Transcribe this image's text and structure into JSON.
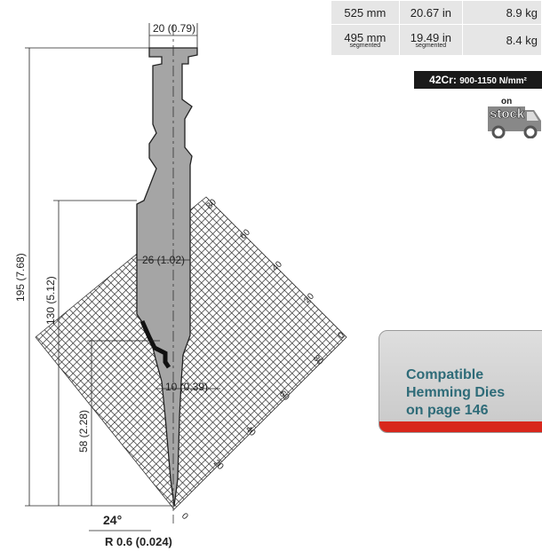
{
  "specs": [
    {
      "length_mm": "525 mm",
      "length_in": "20.67 in",
      "weight": "8.9 kg",
      "note": ""
    },
    {
      "length_mm": "495 mm",
      "length_in": "19.49 in",
      "weight": "8.4 kg",
      "note": "segmented"
    }
  ],
  "material": {
    "grade": "42Cr:",
    "strength": "900-1150 N/mm²"
  },
  "stock": {
    "on": "on",
    "stock": "stock"
  },
  "compatibility": {
    "line1": "Compatible",
    "line2": "Hemming Dies",
    "line3": "on page 146"
  },
  "dimensions": {
    "top_width": "20 (0.79)",
    "total_height": "195 (7.68)",
    "shoulder_height": "130 (5.12)",
    "body_width": "26 (1.02)",
    "neck_width": "10 (0.39)",
    "lower_height": "58 (2.28)",
    "angle": "24°",
    "radius": "R 0.6 (0.024)"
  },
  "grid_scale": {
    "right_ticks": [
      "80",
      "60",
      "40",
      "20",
      "0"
    ],
    "lower_ticks": [
      "80",
      "60",
      "40",
      "20",
      "0"
    ]
  },
  "colors": {
    "tool_fill": "#a5a5a5",
    "accent_red": "#d8271c",
    "card_text": "#2e6b78"
  }
}
